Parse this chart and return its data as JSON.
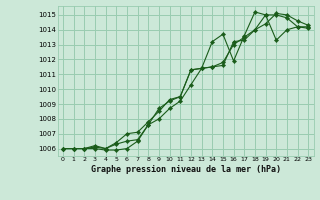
{
  "bg_color": "#cce8d8",
  "plot_bg_color": "#cce8d8",
  "grid_color": "#99ccb0",
  "line_color": "#1a5c1a",
  "marker_color": "#1a5c1a",
  "title": "Graphe pression niveau de la mer (hPa)",
  "xlim": [
    -0.5,
    23.5
  ],
  "ylim": [
    1005.5,
    1015.6
  ],
  "xticks": [
    0,
    1,
    2,
    3,
    4,
    5,
    6,
    7,
    8,
    9,
    10,
    11,
    12,
    13,
    14,
    15,
    16,
    17,
    18,
    19,
    20,
    21,
    22,
    23
  ],
  "yticks": [
    1006,
    1007,
    1008,
    1009,
    1010,
    1011,
    1012,
    1013,
    1014,
    1015
  ],
  "series": [
    [
      1006.0,
      1006.0,
      1006.0,
      1006.1,
      1006.0,
      1006.3,
      1006.5,
      1006.6,
      1007.6,
      1008.7,
      1009.2,
      1009.5,
      1011.3,
      1011.4,
      1011.5,
      1011.6,
      1013.2,
      1013.3,
      1014.0,
      1015.0,
      1015.0,
      1014.8,
      1014.2,
      1014.2
    ],
    [
      1006.0,
      1006.0,
      1006.0,
      1006.2,
      1006.0,
      1006.4,
      1007.0,
      1007.1,
      1007.8,
      1008.5,
      1009.3,
      1009.5,
      1011.3,
      1011.4,
      1011.5,
      1011.8,
      1013.0,
      1013.5,
      1014.0,
      1014.4,
      1015.1,
      1015.0,
      1014.6,
      1014.3
    ],
    [
      1006.0,
      1006.0,
      1006.0,
      1006.0,
      1005.9,
      1005.9,
      1006.0,
      1006.5,
      1007.6,
      1008.0,
      1008.7,
      1009.2,
      1010.3,
      1011.4,
      1013.2,
      1013.7,
      1011.9,
      1013.6,
      1015.2,
      1015.0,
      1013.3,
      1014.0,
      1014.2,
      1014.1
    ]
  ]
}
